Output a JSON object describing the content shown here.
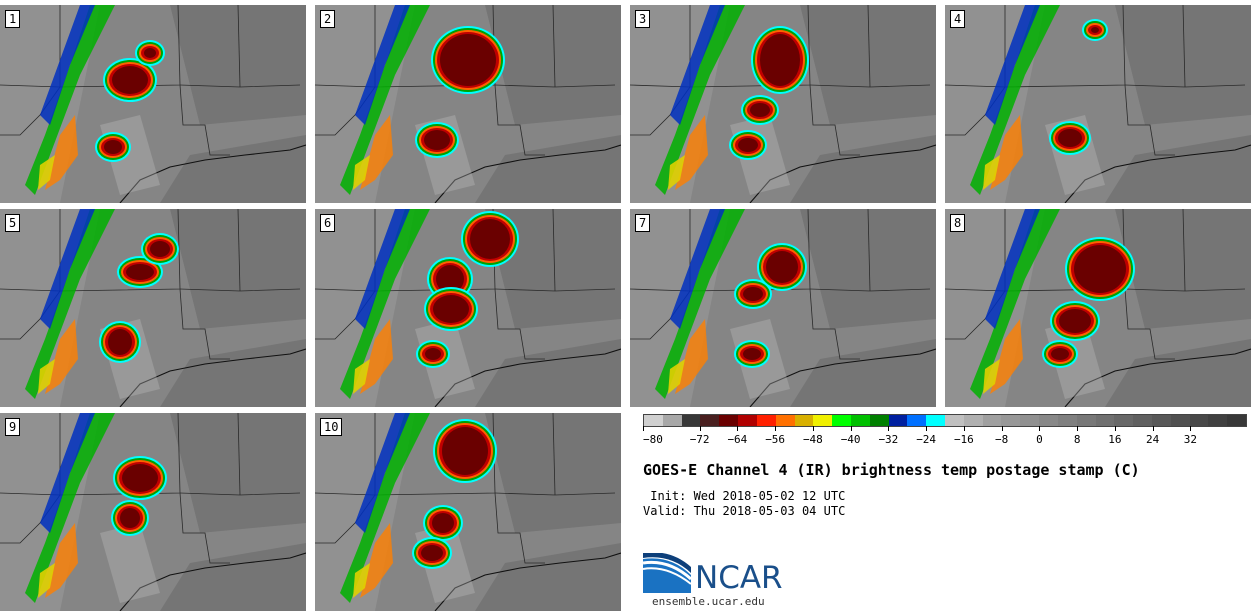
{
  "panels": [
    {
      "label": "1"
    },
    {
      "label": "2"
    },
    {
      "label": "3"
    },
    {
      "label": "4"
    },
    {
      "label": "5"
    },
    {
      "label": "6"
    },
    {
      "label": "7"
    },
    {
      "label": "8"
    },
    {
      "label": "9"
    },
    {
      "label": "10"
    }
  ],
  "colorbar": {
    "colors": [
      "#d0d0d0",
      "#a8a8a8",
      "#383838",
      "#4a2020",
      "#6a0000",
      "#b00000",
      "#ff2000",
      "#ff7000",
      "#d8b000",
      "#f0f000",
      "#00ff00",
      "#00c000",
      "#008000",
      "#0020a0",
      "#0070ff",
      "#00ffff",
      "#c0c0c0",
      "#b0b0b0",
      "#a0a0a0",
      "#989898",
      "#909090",
      "#888888",
      "#808080",
      "#787878",
      "#707070",
      "#686868",
      "#606060",
      "#585858",
      "#505050",
      "#484848",
      "#404040",
      "#383838"
    ],
    "tick_labels": [
      "−80",
      "−72",
      "−64",
      "−56",
      "−48",
      "−40",
      "−32",
      "−24",
      "−16",
      "−8",
      "0",
      "8",
      "16",
      "24",
      "32"
    ]
  },
  "title": "GOES-E Channel 4 (IR) brightness temp postage stamp (C)",
  "init_line": " Init: Wed 2018-05-02 12 UTC",
  "valid_line": "Valid: Thu 2018-05-03 04 UTC",
  "logo": {
    "text": "NCAR",
    "url": "ensemble.ucar.edu"
  }
}
